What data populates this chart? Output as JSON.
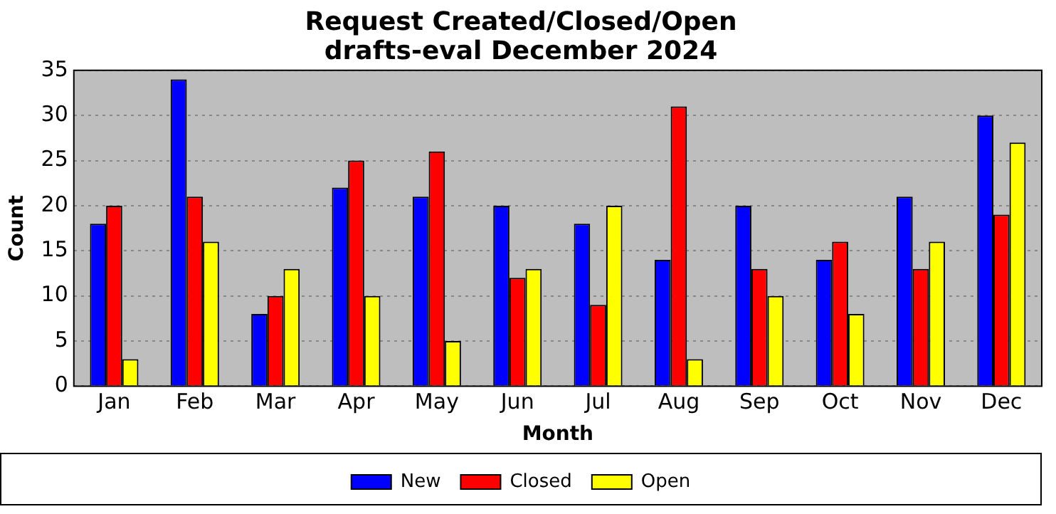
{
  "chart_data": {
    "type": "bar",
    "title": "Request Created/Closed/Open\ndrafts-eval December 2024",
    "xlabel": "Month",
    "ylabel": "Count",
    "categories": [
      "Jan",
      "Feb",
      "Mar",
      "Apr",
      "May",
      "Jun",
      "Jul",
      "Aug",
      "Sep",
      "Oct",
      "Nov",
      "Dec"
    ],
    "series": [
      {
        "name": "New",
        "color": "#0000ff",
        "values": [
          18,
          34,
          8,
          22,
          21,
          20,
          18,
          14,
          20,
          14,
          21,
          30
        ]
      },
      {
        "name": "Closed",
        "color": "#ff0000",
        "values": [
          20,
          21,
          10,
          25,
          26,
          12,
          9,
          31,
          13,
          16,
          13,
          19
        ]
      },
      {
        "name": "Open",
        "color": "#ffff00",
        "values": [
          3,
          16,
          13,
          10,
          5,
          13,
          20,
          3,
          10,
          8,
          16,
          27
        ]
      }
    ],
    "ylim": [
      0,
      35
    ],
    "yticks": [
      0,
      5,
      10,
      15,
      20,
      25,
      30,
      35
    ],
    "grid": "y",
    "legend": "bottom"
  }
}
